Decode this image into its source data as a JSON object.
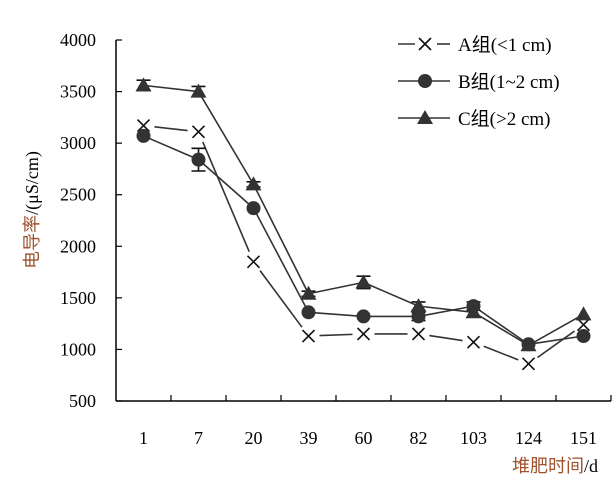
{
  "chart_data": {
    "type": "line",
    "xlabel_cn": "堆肥时间",
    "xlabel_unit": "/d",
    "ylabel_cn": "电导率",
    "ylabel_unit": "/(μS/cm)",
    "categories": [
      "1",
      "7",
      "20",
      "39",
      "60",
      "82",
      "103",
      "124",
      "151"
    ],
    "ylim": [
      500,
      4000
    ],
    "yticks": [
      500,
      1000,
      1500,
      2000,
      2500,
      3000,
      3500,
      4000
    ],
    "grid": false,
    "legend_position": "top-right",
    "label_color": "#a0522d",
    "series": [
      {
        "name": "A组(<1 cm)",
        "marker": "x",
        "values": [
          3170,
          3110,
          1850,
          1130,
          1150,
          1150,
          1070,
          860,
          1240
        ],
        "errors": [
          0,
          0,
          0,
          0,
          0,
          0,
          0,
          0,
          0
        ]
      },
      {
        "name": "B组(1~2 cm)",
        "marker": "circle",
        "values": [
          3070,
          2840,
          2370,
          1360,
          1320,
          1320,
          1420,
          1050,
          1130
        ],
        "errors": [
          0,
          110,
          0,
          0,
          0,
          40,
          40,
          0,
          0
        ]
      },
      {
        "name": "C组(>2 cm)",
        "marker": "triangle",
        "values": [
          3560,
          3500,
          2600,
          1540,
          1650,
          1420,
          1360,
          1040,
          1340
        ],
        "errors": [
          50,
          50,
          25,
          25,
          60,
          40,
          0,
          0,
          0
        ]
      }
    ]
  }
}
